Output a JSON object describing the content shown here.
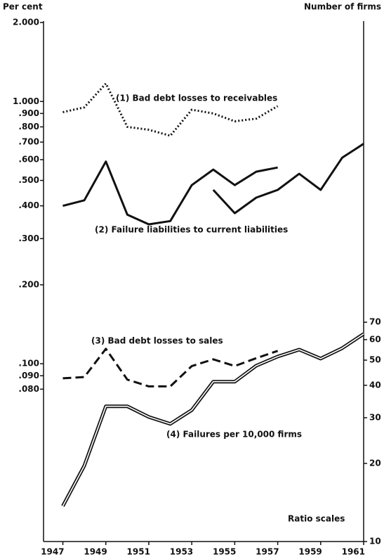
{
  "chart_data": {
    "type": "line",
    "y_label": "Per cent",
    "y2_label": "Number of firms",
    "note": "Ratio scales",
    "x": [
      1947,
      1948,
      1949,
      1950,
      1951,
      1952,
      1953,
      1954,
      1955,
      1956,
      1957,
      1958,
      1959,
      1960,
      1961
    ],
    "xlim": [
      1946.1,
      1961
    ],
    "xticks": [
      1947,
      1949,
      1951,
      1953,
      1955,
      1957,
      1959,
      1961
    ],
    "ylim": [
      0.021,
      2
    ],
    "log_y": true,
    "yticks": [
      {
        "value": 2,
        "label": "2.000"
      },
      {
        "value": 1,
        "label": "1.000"
      },
      {
        "value": 0.9,
        "label": ".900"
      },
      {
        "value": 0.8,
        "label": ".800"
      },
      {
        "value": 0.7,
        "label": ".700"
      },
      {
        "value": 0.6,
        "label": ".600"
      },
      {
        "value": 0.5,
        "label": ".500"
      },
      {
        "value": 0.4,
        "label": ".400"
      },
      {
        "value": 0.3,
        "label": ".300"
      },
      {
        "value": 0.2,
        "label": ".200"
      },
      {
        "value": 0.1,
        "label": ".100"
      },
      {
        "value": 0.09,
        "label": ".090"
      },
      {
        "value": 0.08,
        "label": ".080"
      }
    ],
    "y2lim": [
      10,
      1000
    ],
    "y2ticks": [
      10,
      20,
      30,
      40,
      50,
      60,
      70
    ],
    "series": [
      {
        "name": "(1) Bad debt losses to receivables",
        "color": "#111111",
        "style": "dotted",
        "values": [
          0.91,
          0.95,
          1.17,
          0.8,
          0.78,
          0.74,
          0.93,
          0.9,
          0.84,
          0.86,
          0.96,
          null,
          null,
          null,
          null
        ]
      },
      {
        "name": "(2) Failure liabilities to current liabilities",
        "color": "#111111",
        "style": "solid",
        "values": [
          0.4,
          0.42,
          0.59,
          0.37,
          0.34,
          0.35,
          0.48,
          0.55,
          0.48,
          0.54,
          0.56,
          null,
          null,
          null,
          null
        ]
      },
      {
        "color": "#111111",
        "style": "solid",
        "values": [
          null,
          null,
          null,
          null,
          null,
          null,
          null,
          0.46,
          0.375,
          0.43,
          0.46,
          0.53,
          0.46,
          0.61,
          0.69
        ]
      },
      {
        "name": "(3) Bad debt losses to sales",
        "color": "#111111",
        "style": "dashed",
        "values": [
          0.088,
          0.089,
          0.114,
          0.087,
          0.082,
          0.082,
          0.098,
          0.104,
          0.098,
          0.105,
          0.112,
          null,
          null,
          null,
          null
        ]
      },
      {
        "name": "(4) Failures per 10,000 firms",
        "color": "#111111",
        "style": "double",
        "axis": "y2",
        "values": [
          13.7,
          19.6,
          33.2,
          33.2,
          30.2,
          28.4,
          32.1,
          41.3,
          41.3,
          47.6,
          51.6,
          54.9,
          50.7,
          55.6,
          63.1
        ]
      }
    ]
  }
}
